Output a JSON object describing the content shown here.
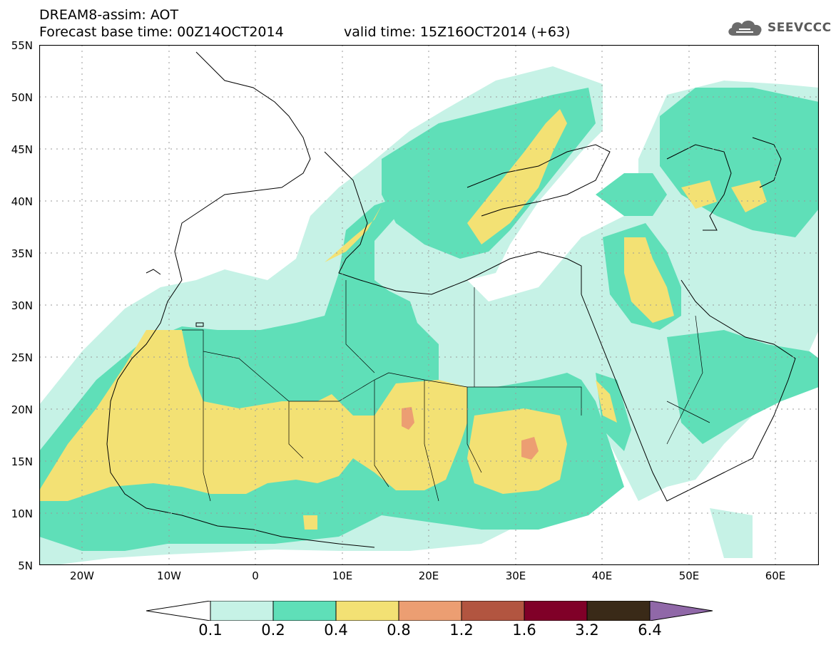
{
  "header": {
    "title": "DREAM8-assim: AOT",
    "base_time": "Forecast base time: 00Z14OCT2014",
    "valid_time": "valid time: 15Z16OCT2014 (+63)"
  },
  "logo": {
    "text": "SEEVCCC",
    "icon": "cloud-icon"
  },
  "axes": {
    "lat_labels": [
      "55N",
      "50N",
      "45N",
      "40N",
      "35N",
      "30N",
      "25N",
      "20N",
      "15N",
      "10N",
      "5N"
    ],
    "lon_labels": [
      "20W",
      "10W",
      "0",
      "10E",
      "20E",
      "30E",
      "40E",
      "50E",
      "60E"
    ],
    "lon_range": [
      -25,
      65
    ],
    "lat_range": [
      5,
      55
    ]
  },
  "colorbar": {
    "labels": [
      "0.1",
      "0.2",
      "0.4",
      "0.8",
      "1.2",
      "1.6",
      "3.2",
      "6.4"
    ],
    "colors": [
      "#c6f2e6",
      "#5fdfb8",
      "#f3e174",
      "#ec9e72",
      "#b25540",
      "#800028",
      "#3a2a18",
      "#9068a8"
    ]
  }
}
